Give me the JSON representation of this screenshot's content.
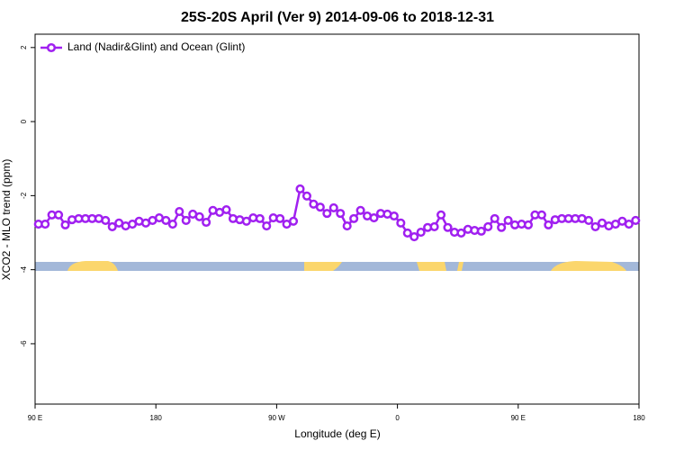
{
  "chart_data": {
    "type": "line",
    "title": "25S-20S April (Ver 9)   2014-09-06 to 2018-12-31",
    "x_label": "Longitude (deg E)",
    "y_label": "XCO2 - MLO trend (ppm)",
    "x": [
      92.5,
      97.5,
      102.5,
      107.5,
      112.5,
      117.5,
      122.5,
      127.5,
      132.5,
      137.5,
      142.5,
      147.5,
      152.5,
      157.5,
      162.5,
      167.5,
      172.5,
      177.5,
      182.5,
      187.5,
      192.5,
      197.5,
      202.5,
      207.5,
      212.5,
      217.5,
      222.5,
      227.5,
      232.5,
      237.5,
      242.5,
      247.5,
      252.5,
      257.5,
      262.5,
      267.5,
      272.5,
      277.5,
      282.5,
      287.5,
      292.5,
      297.5,
      302.5,
      307.5,
      312.5,
      317.5,
      322.5,
      327.5,
      332.5,
      337.5,
      342.5,
      347.5,
      352.5,
      357.5,
      362.5,
      367.5,
      372.5,
      377.5,
      382.5,
      387.5,
      392.5,
      397.5,
      402.5,
      407.5,
      412.5,
      417.5,
      422.5,
      427.5,
      432.5,
      437.5,
      442.5,
      447.5,
      452.5,
      457.5,
      462.5,
      467.5,
      472.5,
      477.5,
      482.5,
      487.5,
      492.5,
      497.5,
      502.5,
      507.5,
      512.5,
      517.5,
      522.5,
      527.5,
      532.5,
      537.5
    ],
    "series": [
      {
        "name": "Land (Nadir&Glint) and Ocean (Glint)",
        "color": "#a020f0",
        "values": [
          -2.77,
          -2.77,
          -2.52,
          -2.52,
          -2.79,
          -2.65,
          -2.62,
          -2.62,
          -2.62,
          -2.62,
          -2.67,
          -2.84,
          -2.74,
          -2.82,
          -2.77,
          -2.69,
          -2.74,
          -2.67,
          -2.6,
          -2.67,
          -2.77,
          -2.43,
          -2.67,
          -2.5,
          -2.57,
          -2.72,
          -2.4,
          -2.45,
          -2.38,
          -2.62,
          -2.65,
          -2.69,
          -2.6,
          -2.62,
          -2.82,
          -2.6,
          -2.62,
          -2.77,
          -2.69,
          -1.82,
          -2.01,
          -2.23,
          -2.31,
          -2.48,
          -2.33,
          -2.48,
          -2.82,
          -2.62,
          -2.4,
          -2.55,
          -2.6,
          -2.48,
          -2.5,
          -2.55,
          -2.74,
          -3.01,
          -3.11,
          -2.99,
          -2.86,
          -2.84,
          -2.52,
          -2.86,
          -2.99,
          -3.01,
          -2.91,
          -2.94,
          -2.96,
          -2.84,
          -2.62,
          -2.86,
          -2.67,
          -2.79,
          -2.77,
          -2.79,
          -2.52,
          -2.52,
          -2.79,
          -2.65,
          -2.62,
          -2.62,
          -2.62,
          -2.62,
          -2.67,
          -2.84,
          -2.74,
          -2.82,
          -2.77,
          -2.69,
          -2.77,
          -2.67
        ]
      }
    ],
    "xlim": [
      90,
      540
    ],
    "xticks": [
      {
        "value": 90,
        "label": "90 E"
      },
      180,
      {
        "value": 270,
        "label": "90 W"
      },
      {
        "value": 360,
        "label": "0"
      },
      {
        "value": 450,
        "label": "90 E"
      },
      {
        "value": 540,
        "label": "180"
      }
    ],
    "ylim": [
      -7.63,
      2.36
    ],
    "yticks": [
      -6,
      -4,
      -2,
      0,
      2
    ],
    "legend": "top-left"
  }
}
